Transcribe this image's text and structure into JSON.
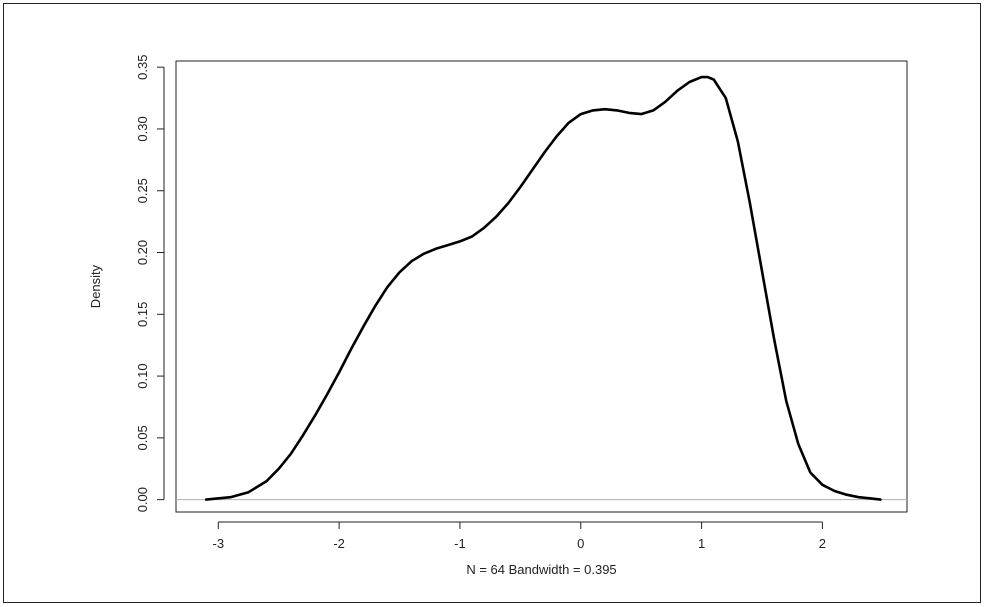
{
  "chart_data": {
    "type": "line",
    "title": "",
    "xlabel": "N = 64   Bandwidth = 0.395",
    "ylabel": "Density",
    "xlim": [
      -3.35,
      2.7
    ],
    "ylim": [
      -0.01,
      0.355
    ],
    "x_ticks": [
      -3,
      -2,
      -1,
      0,
      1,
      2
    ],
    "x_tick_labels": [
      "-3",
      "-2",
      "-1",
      "0",
      "1",
      "2"
    ],
    "y_ticks": [
      0.0,
      0.05,
      0.1,
      0.15,
      0.2,
      0.25,
      0.3,
      0.35
    ],
    "y_tick_labels": [
      "0.00",
      "0.05",
      "0.10",
      "0.15",
      "0.20",
      "0.25",
      "0.30",
      "0.35"
    ],
    "baseline": 0,
    "grid": false,
    "colors": {
      "curve": "#000000",
      "baseline": "#b0b0b0",
      "axes": "#222222"
    },
    "series": [
      {
        "x": [
          -3.1,
          -2.9,
          -2.75,
          -2.6,
          -2.5,
          -2.4,
          -2.3,
          -2.2,
          -2.1,
          -2.0,
          -1.9,
          -1.8,
          -1.7,
          -1.6,
          -1.5,
          -1.4,
          -1.3,
          -1.2,
          -1.1,
          -1.0,
          -0.9,
          -0.8,
          -0.7,
          -0.6,
          -0.5,
          -0.4,
          -0.3,
          -0.2,
          -0.1,
          0.0,
          0.1,
          0.2,
          0.3,
          0.4,
          0.5,
          0.6,
          0.7,
          0.8,
          0.9,
          1.0,
          1.05,
          1.1,
          1.2,
          1.3,
          1.4,
          1.5,
          1.6,
          1.7,
          1.8,
          1.9,
          2.0,
          2.1,
          2.2,
          2.3,
          2.4,
          2.48
        ],
        "y": [
          0.0,
          0.002,
          0.006,
          0.015,
          0.025,
          0.037,
          0.052,
          0.068,
          0.085,
          0.103,
          0.122,
          0.14,
          0.157,
          0.172,
          0.184,
          0.193,
          0.199,
          0.203,
          0.206,
          0.209,
          0.213,
          0.22,
          0.229,
          0.24,
          0.253,
          0.267,
          0.281,
          0.294,
          0.305,
          0.312,
          0.315,
          0.316,
          0.315,
          0.313,
          0.312,
          0.315,
          0.322,
          0.331,
          0.338,
          0.342,
          0.342,
          0.34,
          0.325,
          0.29,
          0.24,
          0.185,
          0.13,
          0.08,
          0.045,
          0.022,
          0.012,
          0.007,
          0.004,
          0.002,
          0.001,
          0.0
        ]
      }
    ]
  }
}
